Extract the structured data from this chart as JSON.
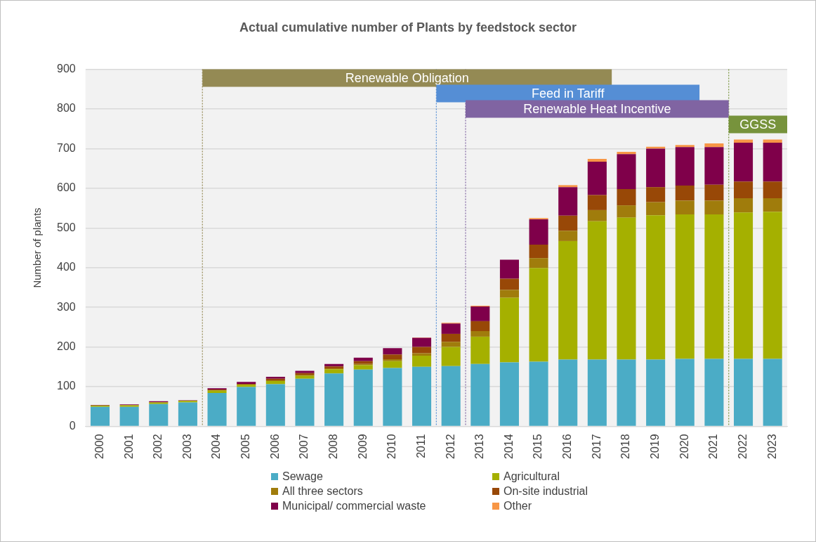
{
  "chart_data": {
    "type": "bar",
    "title": "Actual cumulative number of Plants by feedstock sector",
    "ylabel": "Number of plants",
    "categories": [
      "2000",
      "2001",
      "2002",
      "2003",
      "2004",
      "2005",
      "2006",
      "2007",
      "2008",
      "2009",
      "2010",
      "2011",
      "2012",
      "2013",
      "2014",
      "2015",
      "2016",
      "2017",
      "2018",
      "2019",
      "2020",
      "2021",
      "2022",
      "2023"
    ],
    "stacked": true,
    "series": [
      {
        "name": "Sewage",
        "color": "#4bacc6",
        "values": [
          49,
          49,
          56,
          60,
          84,
          99,
          106,
          120,
          133,
          143,
          147,
          150,
          152,
          157,
          161,
          163,
          168,
          168,
          168,
          168,
          170,
          170,
          170,
          170
        ]
      },
      {
        "name": "Agricultural",
        "color": "#a5b000",
        "values": [
          3,
          4,
          4,
          4,
          6,
          6,
          8,
          7,
          11,
          11,
          17,
          28,
          48,
          69,
          163,
          236,
          299,
          349,
          358,
          364,
          364,
          364,
          369,
          371
        ]
      },
      {
        "name": "All three sectors",
        "color": "#a07c0c",
        "values": [
          0,
          0,
          0,
          0,
          1,
          null,
          2,
          3,
          2,
          3,
          5,
          6,
          13,
          14,
          20,
          25,
          26,
          28,
          31,
          33,
          35,
          35,
          36,
          34
        ]
      },
      {
        "name": "On-site industrial",
        "color": "#984807",
        "values": [
          1,
          1,
          1,
          1,
          2,
          2,
          4,
          4,
          5,
          7,
          12,
          16,
          20,
          25,
          28,
          34,
          38,
          38,
          41,
          38,
          38,
          40,
          42,
          42
        ]
      },
      {
        "name": "Municipal/ commercial waste",
        "color": "#7f004a",
        "values": [
          1,
          1,
          2,
          1,
          3,
          5,
          5,
          6,
          6,
          9,
          16,
          23,
          26,
          37,
          48,
          64,
          72,
          84,
          88,
          97,
          97,
          95,
          98,
          98
        ]
      },
      {
        "name": "Other",
        "color": "#f79646",
        "values": [
          0,
          0,
          0,
          0,
          0,
          0,
          0,
          0,
          0,
          0,
          null,
          1,
          2,
          2,
          null,
          3,
          5,
          7,
          6,
          5,
          5,
          9,
          8,
          8
        ]
      }
    ],
    "ylim": [
      0,
      900
    ],
    "yticks": [
      0,
      100,
      200,
      300,
      400,
      500,
      600,
      700,
      800,
      900
    ],
    "grid": "y",
    "legend": "bottom",
    "ref_lines": [
      {
        "axis": "x",
        "value": "2004",
        "color": "#948a54",
        "line_style": "dotted"
      },
      {
        "axis": "x",
        "value": "2012",
        "color": "#558ed5",
        "line_style": "dotted"
      },
      {
        "axis": "x",
        "value": "2013",
        "color": "#8064a2",
        "line_style": "dotted"
      },
      {
        "axis": "x",
        "value": "2022",
        "color": "#77933c",
        "line_style": "dotted"
      }
    ],
    "bands": [
      {
        "axis": "x",
        "from": "2004",
        "to": "2017",
        "label": "Renewable Obligation",
        "color": "#948a54"
      },
      {
        "axis": "x",
        "from": "2012",
        "to": "2020",
        "label": "Feed in Tariff",
        "color": "#558ed5"
      },
      {
        "axis": "x",
        "from": "2013",
        "to": "2021",
        "label": "Renewable Heat Incentive",
        "color": "#8064a2"
      },
      {
        "axis": "x",
        "from": "2022",
        "to": "2023",
        "label": "GGSS",
        "color": "#77933c"
      }
    ]
  }
}
